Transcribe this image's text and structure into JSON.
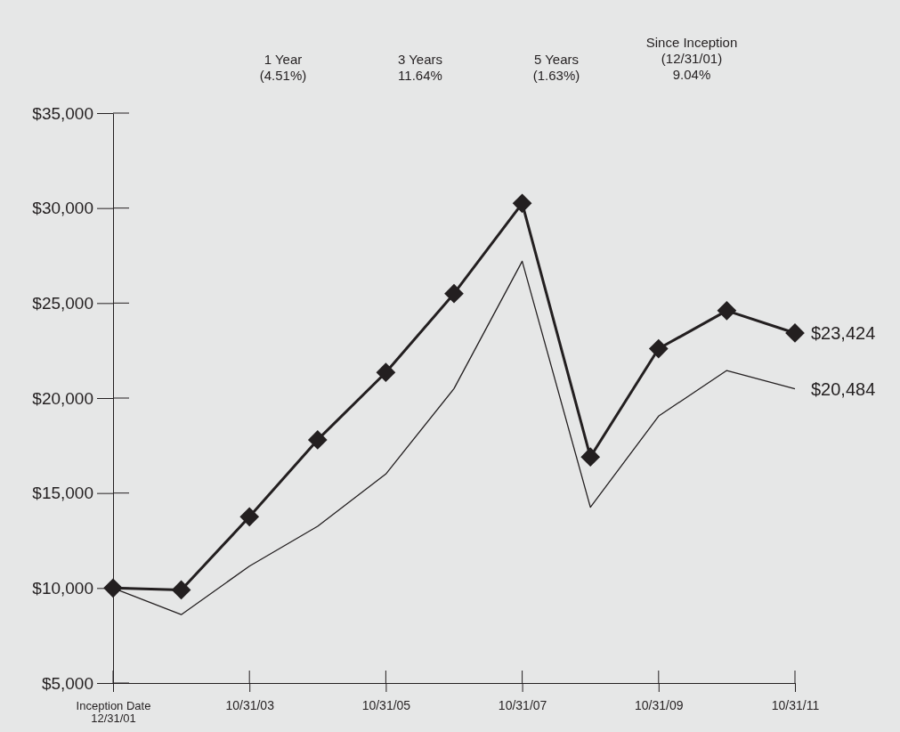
{
  "chart_data": {
    "type": "line",
    "categories": [
      "Inception Date\n12/31/01",
      null,
      "10/31/03",
      null,
      "10/31/05",
      null,
      "10/31/07",
      null,
      "10/31/09",
      null,
      "10/31/11"
    ],
    "series": [
      {
        "color": "#231f20",
        "marker": "diamond",
        "values": [
          10000,
          9900,
          13750,
          17800,
          21350,
          25500,
          30250,
          16900,
          22600,
          24600,
          23424
        ],
        "value_labels": [
          null,
          null,
          null,
          null,
          null,
          null,
          null,
          null,
          null,
          null,
          "$23,424"
        ]
      },
      {
        "color": "#231f20",
        "marker": "none",
        "values": [
          10000,
          8600,
          11150,
          13250,
          16000,
          20500,
          27200,
          14250,
          19050,
          21450,
          20484
        ],
        "value_labels": [
          null,
          null,
          null,
          null,
          null,
          null,
          null,
          null,
          null,
          null,
          "$20,484"
        ]
      }
    ],
    "ylim": [
      5000,
      35000
    ],
    "yticks": [
      {
        "value": 5000,
        "label": "$5,000"
      },
      {
        "value": 10000,
        "label": "$10,000"
      },
      {
        "value": 15000,
        "label": "$15,000"
      },
      {
        "value": 20000,
        "label": "$20,000"
      },
      {
        "value": 25000,
        "label": "$25,000"
      },
      {
        "value": 30000,
        "label": "$30,000"
      },
      {
        "value": 35000,
        "label": "$35,000"
      }
    ],
    "annotations": [
      "1 Year\n(4.51%)",
      "3 Years\n11.64%",
      "5 Years\n(1.63%)",
      "Since Inception\n(12/31/01)\n9.04%"
    ],
    "grid": false
  }
}
